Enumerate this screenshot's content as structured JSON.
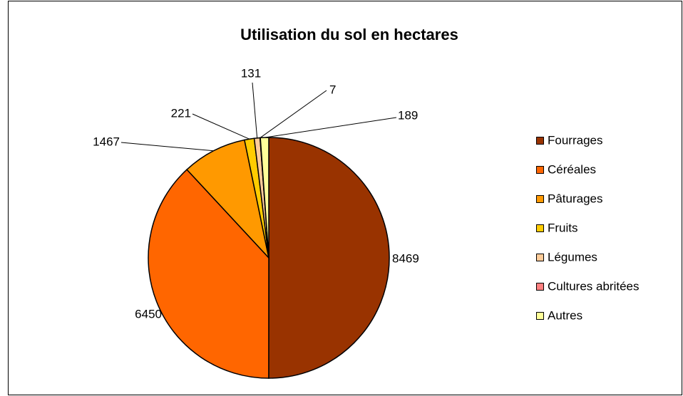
{
  "chart_data": {
    "type": "pie",
    "title": "Utilisation du sol en hectares",
    "categories": [
      "Fourrages",
      "Céréales",
      "Pâturages",
      "Fruits",
      "Légumes",
      "Cultures abritées",
      "Autres"
    ],
    "values": [
      8469,
      6450,
      1467,
      221,
      131,
      7,
      189
    ],
    "colors": [
      "#993300",
      "#ff6600",
      "#ff9900",
      "#ffcc00",
      "#ffcc99",
      "#ff8080",
      "#ffff99"
    ],
    "legend": "right"
  }
}
